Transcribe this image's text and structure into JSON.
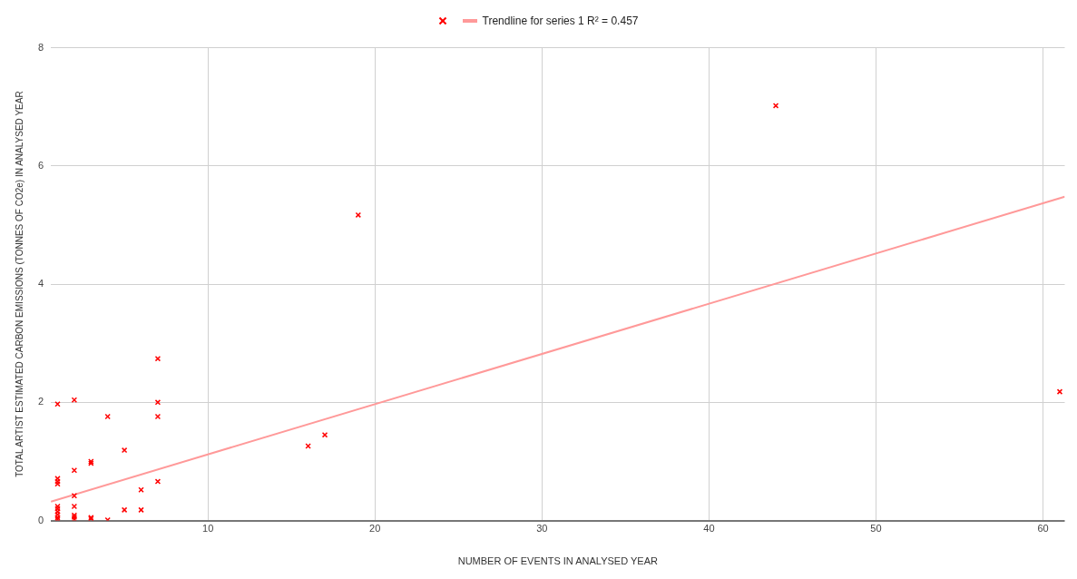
{
  "chart_data": {
    "type": "scatter",
    "xlabel": "NUMBER OF EVENTS IN ANALYSED YEAR",
    "ylabel": "TOTAL ARTIST ESTIMATED CARBON EMISSIONS (TONNES OF CO2e) IN ANALYSED YEAR",
    "xlim": [
      0.6,
      61.3
    ],
    "xticks": [
      10,
      20,
      30,
      40,
      50,
      60
    ],
    "ylim": [
      0,
      8
    ],
    "yticks": [
      0,
      2,
      4,
      6,
      8
    ],
    "grid": true,
    "legend": "top",
    "series": [
      {
        "marker": "cross",
        "color": "#ff0000",
        "x": [
          1,
          1,
          1,
          1,
          1,
          1,
          1,
          1,
          1,
          1,
          2,
          2,
          2,
          2,
          2,
          2,
          2,
          3,
          3,
          3,
          3,
          4,
          4,
          5,
          5,
          6,
          6,
          7,
          7,
          7,
          7,
          16,
          17,
          19,
          44,
          61
        ],
        "values": [
          1.97,
          0.71,
          0.66,
          0.62,
          0.24,
          0.2,
          0.15,
          0.1,
          0.05,
          0.02,
          2.04,
          0.85,
          0.42,
          0.24,
          0.09,
          0.06,
          0.02,
          1.0,
          0.97,
          0.05,
          0.03,
          1.76,
          0.01,
          1.19,
          0.18,
          0.52,
          0.18,
          2.74,
          2.0,
          1.76,
          0.66,
          1.26,
          1.45,
          5.17,
          7.02,
          2.18
        ]
      },
      {
        "type": "line",
        "marker": "none",
        "name": "Trendline for series 1 R² = 0.457",
        "color": "#ff9999",
        "x": [
          0.6,
          61.3
        ],
        "values": [
          0.32,
          5.48
        ]
      }
    ]
  }
}
